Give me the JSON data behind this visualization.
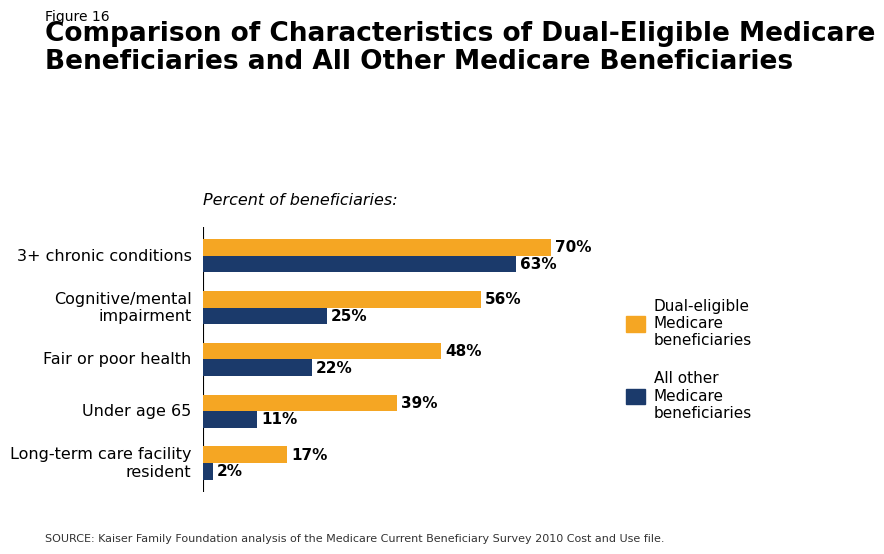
{
  "figure_label": "Figure 16",
  "title_line1": "Comparison of Characteristics of Dual-Eligible Medicare",
  "title_line2": "Beneficiaries and All Other Medicare Beneficiaries",
  "subtitle": "Percent of beneficiaries:",
  "categories": [
    "3+ chronic conditions",
    "Cognitive/mental\nimpairment",
    "Fair or poor health",
    "Under age 65",
    "Long-term care facility\nresident"
  ],
  "dual_values": [
    70,
    56,
    48,
    39,
    17
  ],
  "other_values": [
    63,
    25,
    22,
    11,
    2
  ],
  "dual_color": "#F5A623",
  "other_color": "#1B3A6B",
  "bar_height": 0.32,
  "xlim": [
    0,
    82
  ],
  "legend_dual_label": "Dual-eligible\nMedicare\nbeneficiaries",
  "legend_other_label": "All other\nMedicare\nbeneficiaries",
  "source_text": "SOURCE: Kaiser Family Foundation analysis of the Medicare Current Beneficiary Survey 2010 Cost and Use file.",
  "background_color": "#FFFFFF",
  "title_fontsize": 19,
  "figure_label_fontsize": 10,
  "label_fontsize": 11.5,
  "bar_label_fontsize": 11,
  "subtitle_fontsize": 11.5,
  "source_fontsize": 8
}
